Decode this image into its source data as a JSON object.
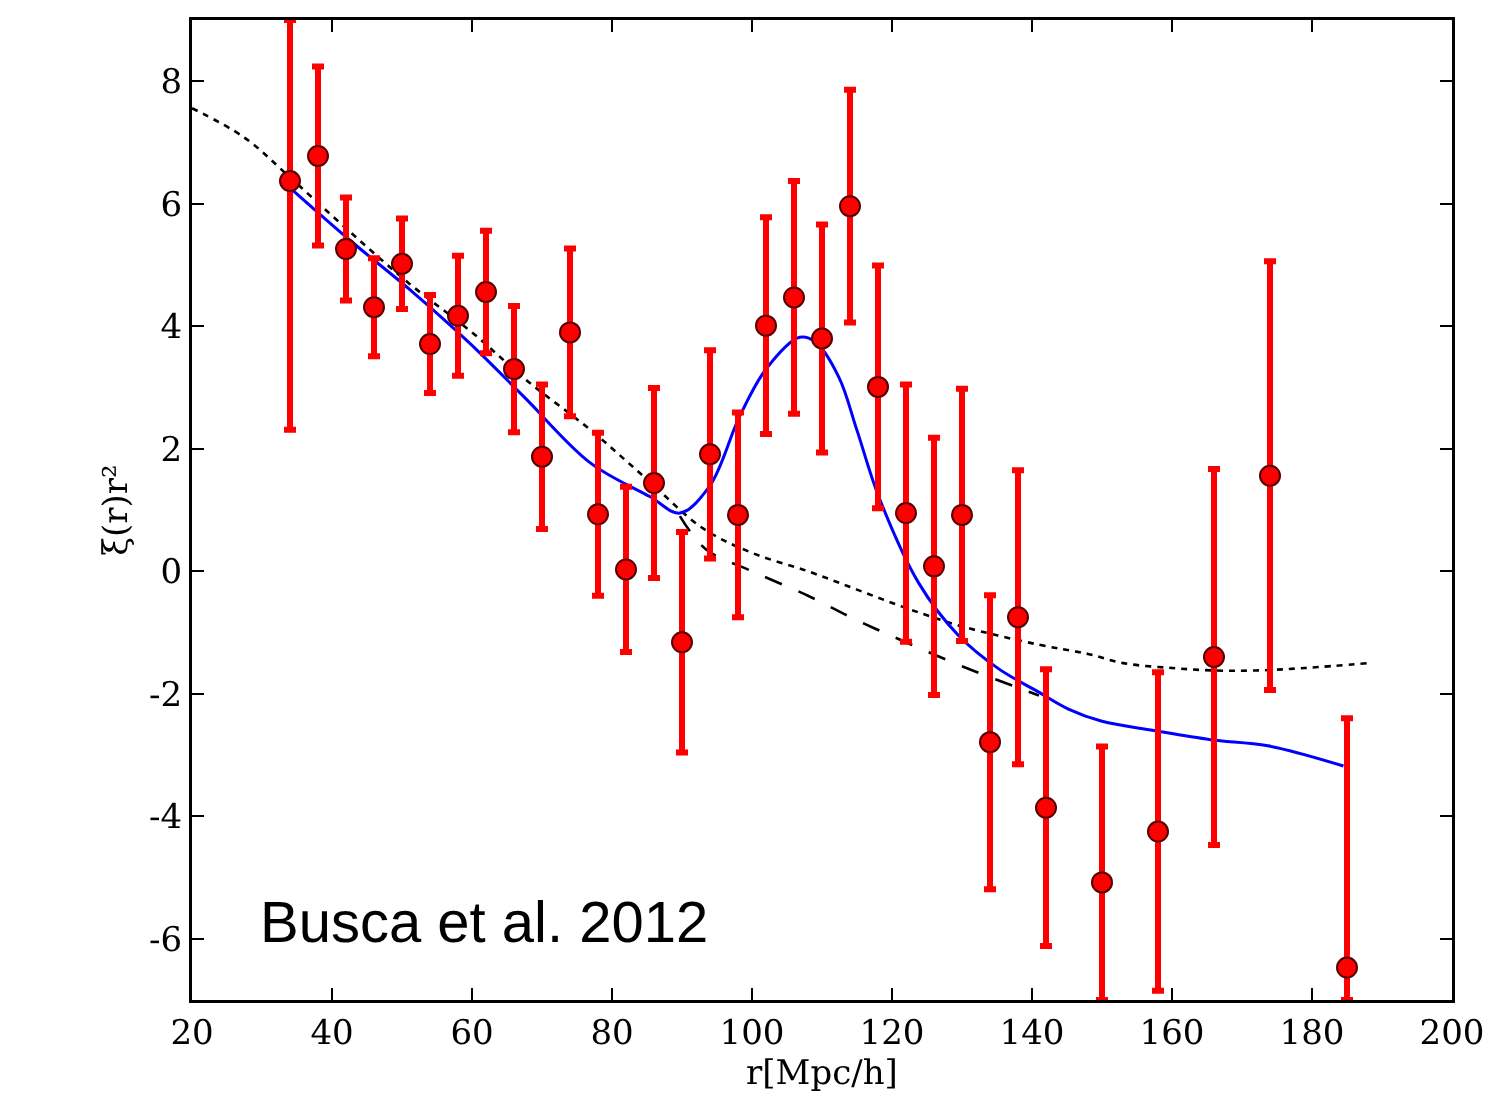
{
  "chart_data": {
    "type": "scatter",
    "xlabel": "r[Mpc/h]",
    "ylabel": "ξ(r)r²",
    "annotations": [
      "Busca et al. 2012"
    ],
    "xlim": [
      20,
      200
    ],
    "xticks": [
      20,
      40,
      60,
      80,
      100,
      120,
      140,
      160,
      180,
      200
    ],
    "ylim": [
      -7,
      9
    ],
    "yticks": [
      -6,
      -4,
      -2,
      0,
      2,
      4,
      6,
      8
    ],
    "grid": false,
    "series": [
      {
        "type": "line",
        "marker": "none",
        "color": "#000000",
        "line_style": "dotted",
        "x": [
          20,
          27.5,
          34,
          42,
          51,
          60,
          68,
          77,
          85,
          93,
          100,
          108,
          115,
          122,
          130,
          141,
          148,
          153,
          160,
          166,
          172,
          179,
          188
        ],
        "values": [
          7.56,
          7.08,
          6.43,
          5.6,
          4.7,
          3.9,
          3.1,
          2.3,
          1.5,
          0.7,
          0.3,
          0.0,
          -0.3,
          -0.6,
          -0.9,
          -1.2,
          -1.35,
          -1.5,
          -1.58,
          -1.62,
          -1.62,
          -1.58,
          -1.5
        ]
      },
      {
        "type": "line",
        "marker": "none",
        "color": "#000000",
        "line_style": "dashed",
        "x": [
          89.7,
          93.4,
          100,
          108,
          115,
          122,
          130,
          141
        ],
        "values": [
          0.9,
          0.36,
          0.0,
          -0.4,
          -0.8,
          -1.16,
          -1.55,
          -2.03
        ]
      },
      {
        "type": "line",
        "marker": "none",
        "color": "#0000ff",
        "line_style": "solid",
        "x": [
          34,
          42.6,
          51.2,
          59.7,
          67.4,
          76.9,
          85.4,
          89.7,
          94,
          98.2,
          102,
          106.8,
          109,
          112.4,
          115,
          118.1,
          123.8,
          129.5,
          135.2,
          140.9,
          145.2,
          150,
          157.4,
          165.5,
          173.7,
          184.5
        ],
        "values": [
          6.26,
          5.4,
          4.59,
          3.72,
          2.85,
          1.77,
          1.22,
          0.95,
          1.4,
          2.52,
          3.3,
          3.82,
          3.75,
          3.17,
          2.3,
          1.22,
          -0.19,
          -1.05,
          -1.59,
          -1.97,
          -2.25,
          -2.45,
          -2.6,
          -2.75,
          -2.85,
          -3.18
        ]
      },
      {
        "marker": "circle",
        "color": "#ff0000",
        "x": [
          34,
          38,
          42,
          46,
          50,
          54,
          58,
          62,
          66,
          70,
          74,
          78,
          82,
          86,
          90,
          94,
          98,
          102,
          106,
          110,
          114,
          118,
          122,
          126,
          130,
          134,
          138,
          142,
          150,
          158,
          166,
          174,
          185
        ],
        "values": [
          6.37,
          6.78,
          5.26,
          4.31,
          5.02,
          3.71,
          4.17,
          4.56,
          3.3,
          1.87,
          3.9,
          0.93,
          0.03,
          1.44,
          -1.16,
          1.91,
          0.92,
          4.01,
          4.47,
          3.8,
          5.96,
          3.01,
          0.95,
          0.08,
          0.92,
          -2.79,
          -0.75,
          -3.86,
          -5.08,
          -4.25,
          -1.4,
          1.56,
          -6.47
        ],
        "errors": [
          [
            2.31,
            9
          ],
          1.46,
          0.84,
          0.8,
          0.74,
          0.8,
          0.98,
          1.0,
          1.03,
          1.18,
          1.37,
          1.33,
          1.35,
          1.55,
          1.8,
          1.7,
          1.67,
          1.77,
          1.9,
          1.86,
          1.9,
          1.98,
          2.1,
          2.1,
          2.06,
          2.4,
          2.4,
          2.26,
          [
            -7,
            -2.86
          ],
          2.6,
          3.07,
          3.5,
          [
            -7,
            -2.4
          ]
        ]
      }
    ]
  }
}
